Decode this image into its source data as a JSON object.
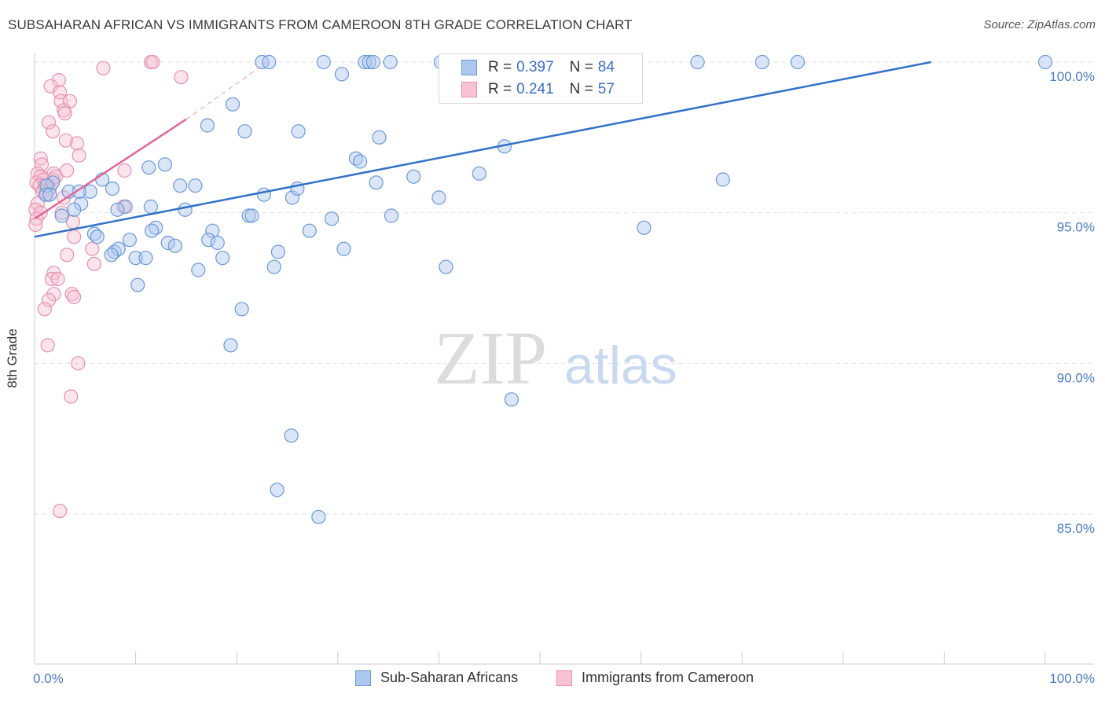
{
  "header": {
    "title": "SUBSAHARAN AFRICAN VS IMMIGRANTS FROM CAMEROON 8TH GRADE CORRELATION CHART",
    "source": "Source: ZipAtlas.com"
  },
  "watermark": {
    "zip": "ZIP",
    "atlas": "atlas"
  },
  "legend": {
    "r_label": "R =",
    "n_label": "N =",
    "items": [
      {
        "name": "Sub-Saharan Africans",
        "r": "0.397",
        "n": "84",
        "fill": "#adc8ee",
        "stroke": "#6a98d8"
      },
      {
        "name": "Immigrants from Cameroon",
        "r": "0.241",
        "n": "57",
        "fill": "#f7c3d3",
        "stroke": "#e791ae"
      }
    ]
  },
  "colors": {
    "blue_line": "#3372c9",
    "pink_line": "#e0679a",
    "grid": "#e2e2e2",
    "axis_text": "#4a7cc4"
  },
  "chart_data": {
    "type": "scatter",
    "title": "SUBSAHARAN AFRICAN VS IMMIGRANTS FROM CAMEROON 8TH GRADE CORRELATION CHART",
    "xlabel": "",
    "ylabel": "8th Grade",
    "xlim": [
      0,
      100
    ],
    "ylim": [
      80.5,
      100.5
    ],
    "x_tick_labels": [
      "0.0%",
      "100.0%"
    ],
    "y_ticks": [
      85,
      90,
      95,
      100
    ],
    "y_tick_labels": [
      "85.0%",
      "90.0%",
      "95.0%",
      "100.0%"
    ],
    "grid": true,
    "series": [
      {
        "name": "Sub-Saharan Africans",
        "r": 0.397,
        "n": 84,
        "trend": {
          "x": [
            0,
            88.7
          ],
          "y": [
            94.2,
            100
          ]
        },
        "points": [
          [
            22.5,
            100
          ],
          [
            23.2,
            100
          ],
          [
            28.6,
            100
          ],
          [
            32.7,
            100
          ],
          [
            33.1,
            100
          ],
          [
            33.5,
            100
          ],
          [
            35.2,
            100
          ],
          [
            40.2,
            100
          ],
          [
            65.6,
            100
          ],
          [
            72.0,
            100
          ],
          [
            75.5,
            100
          ],
          [
            100,
            100
          ],
          [
            47.5,
            100
          ],
          [
            30.4,
            99.6
          ],
          [
            19.6,
            98.6
          ],
          [
            17.1,
            97.9
          ],
          [
            20.8,
            97.7
          ],
          [
            26.1,
            97.7
          ],
          [
            34.1,
            97.5
          ],
          [
            31.8,
            96.8
          ],
          [
            32.2,
            96.7
          ],
          [
            12.9,
            96.6
          ],
          [
            6.7,
            96.1
          ],
          [
            68.1,
            96.1
          ],
          [
            14.4,
            95.9
          ],
          [
            15.9,
            95.9
          ],
          [
            1.8,
            96.0
          ],
          [
            1.2,
            95.9
          ],
          [
            3.4,
            95.7
          ],
          [
            5.5,
            95.7
          ],
          [
            7.7,
            95.8
          ],
          [
            1.1,
            95.6
          ],
          [
            1.5,
            95.6
          ],
          [
            22.7,
            95.6
          ],
          [
            25.5,
            95.5
          ],
          [
            4.6,
            95.3
          ],
          [
            11.5,
            95.2
          ],
          [
            9.0,
            95.2
          ],
          [
            3.9,
            95.1
          ],
          [
            14.9,
            95.1
          ],
          [
            21.2,
            94.9
          ],
          [
            21.5,
            94.9
          ],
          [
            2.7,
            94.9
          ],
          [
            29.4,
            94.8
          ],
          [
            35.3,
            94.9
          ],
          [
            12.0,
            94.5
          ],
          [
            11.6,
            94.4
          ],
          [
            17.6,
            94.4
          ],
          [
            27.2,
            94.4
          ],
          [
            5.9,
            94.3
          ],
          [
            6.2,
            94.2
          ],
          [
            9.4,
            94.1
          ],
          [
            17.2,
            94.1
          ],
          [
            18.1,
            94.0
          ],
          [
            13.2,
            94.0
          ],
          [
            13.9,
            93.9
          ],
          [
            7.9,
            93.7
          ],
          [
            8.3,
            93.8
          ],
          [
            24.1,
            93.7
          ],
          [
            30.6,
            93.8
          ],
          [
            7.6,
            93.6
          ],
          [
            10.0,
            93.5
          ],
          [
            11.0,
            93.5
          ],
          [
            18.6,
            93.5
          ],
          [
            23.7,
            93.2
          ],
          [
            16.2,
            93.1
          ],
          [
            40.7,
            93.2
          ],
          [
            10.2,
            92.6
          ],
          [
            20.5,
            91.8
          ],
          [
            19.4,
            90.6
          ],
          [
            47.2,
            88.8
          ],
          [
            25.4,
            87.6
          ],
          [
            24.0,
            85.8
          ],
          [
            28.1,
            84.9
          ],
          [
            60.3,
            94.5
          ],
          [
            8.2,
            95.1
          ],
          [
            4.4,
            95.7
          ],
          [
            11.3,
            96.5
          ],
          [
            26.0,
            95.8
          ],
          [
            33.8,
            96.0
          ],
          [
            37.5,
            96.2
          ],
          [
            44.0,
            96.3
          ],
          [
            40.0,
            95.5
          ],
          [
            46.5,
            97.2
          ]
        ]
      },
      {
        "name": "Immigrants from Cameroon",
        "r": 0.241,
        "n": 57,
        "trend": {
          "x": [
            0,
            15
          ],
          "y": [
            94.8,
            98.1
          ]
        },
        "trend_dashed": {
          "x": [
            15,
            23
          ],
          "y": [
            98.1,
            100
          ]
        },
        "points": [
          [
            11.5,
            100
          ],
          [
            11.7,
            100
          ],
          [
            6.8,
            99.8
          ],
          [
            14.5,
            99.5
          ],
          [
            2.4,
            99.4
          ],
          [
            1.6,
            99.2
          ],
          [
            2.5,
            99.0
          ],
          [
            2.6,
            98.7
          ],
          [
            3.5,
            98.7
          ],
          [
            2.9,
            98.4
          ],
          [
            3.0,
            98.3
          ],
          [
            1.4,
            98.0
          ],
          [
            1.8,
            97.7
          ],
          [
            3.1,
            97.4
          ],
          [
            4.2,
            97.3
          ],
          [
            4.4,
            96.9
          ],
          [
            0.6,
            96.8
          ],
          [
            0.7,
            96.6
          ],
          [
            3.2,
            96.4
          ],
          [
            1.9,
            96.3
          ],
          [
            0.3,
            96.3
          ],
          [
            0.6,
            96.2
          ],
          [
            1.8,
            96.1
          ],
          [
            0.2,
            96.0
          ],
          [
            0.9,
            96.1
          ],
          [
            0.5,
            95.9
          ],
          [
            1.0,
            95.9
          ],
          [
            1.5,
            95.8
          ],
          [
            0.8,
            95.7
          ],
          [
            1.2,
            95.6
          ],
          [
            2.9,
            95.5
          ],
          [
            0.3,
            95.3
          ],
          [
            8.8,
            95.2
          ],
          [
            0.1,
            95.1
          ],
          [
            0.6,
            95.0
          ],
          [
            2.7,
            95.0
          ],
          [
            0.2,
            94.8
          ],
          [
            3.8,
            94.7
          ],
          [
            0.1,
            94.6
          ],
          [
            3.9,
            94.2
          ],
          [
            5.7,
            93.8
          ],
          [
            3.2,
            93.6
          ],
          [
            5.9,
            93.3
          ],
          [
            1.9,
            93.0
          ],
          [
            1.7,
            92.8
          ],
          [
            2.3,
            92.8
          ],
          [
            1.9,
            92.3
          ],
          [
            3.7,
            92.3
          ],
          [
            3.9,
            92.2
          ],
          [
            1.4,
            92.1
          ],
          [
            1.0,
            91.8
          ],
          [
            1.3,
            90.6
          ],
          [
            4.3,
            90.0
          ],
          [
            3.6,
            88.9
          ],
          [
            2.5,
            85.1
          ],
          [
            8.9,
            96.4
          ],
          [
            2.1,
            96.2
          ]
        ]
      }
    ]
  }
}
